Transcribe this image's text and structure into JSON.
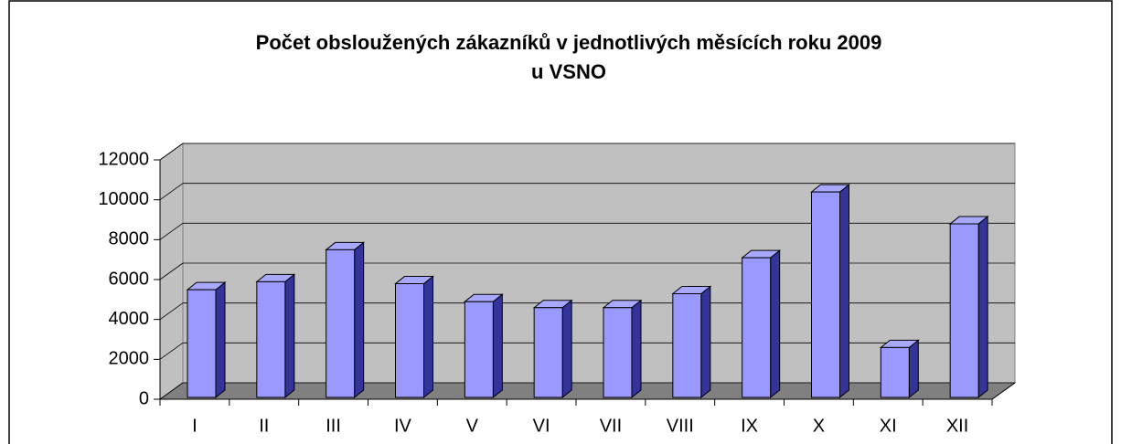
{
  "chart_data": {
    "type": "bar3d",
    "title": [
      "Počet obsloužených zákazníků v jednotlivých měsících roku 2009",
      "u VSNO"
    ],
    "categories": [
      "I",
      "II",
      "III",
      "IV",
      "V",
      "VI",
      "VII",
      "VIII",
      "IX",
      "X",
      "XI",
      "XII"
    ],
    "values": [
      5400,
      5800,
      7400,
      5700,
      4800,
      4500,
      4500,
      5200,
      7000,
      10300,
      2500,
      8700
    ],
    "color": "#9999ff",
    "ylim": [
      0,
      12000
    ],
    "yticks": [
      0,
      2000,
      4000,
      6000,
      8000,
      10000,
      12000
    ],
    "grid": true
  }
}
